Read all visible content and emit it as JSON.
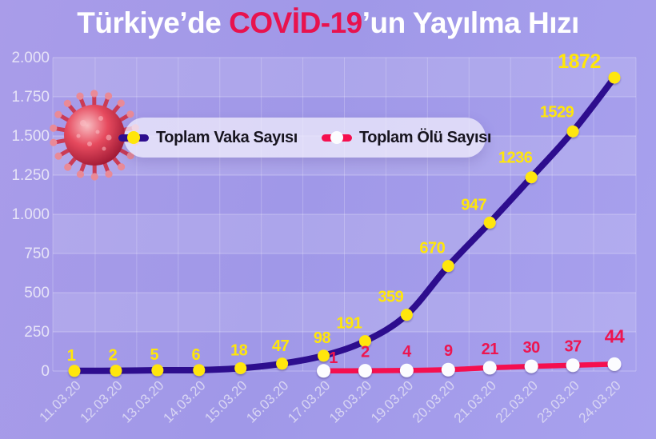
{
  "title": {
    "prefix": "Türkiye’de ",
    "highlight": "COVİD-19",
    "suffix": "’un Yayılma Hızı"
  },
  "colors": {
    "background": "#a29ae9",
    "title_text": "#ffffff",
    "title_highlight": "#e8124e",
    "band_light": "rgba(255,255,255,0.13)",
    "gridline": "rgba(255,255,255,0.30)",
    "cases_line": "#2d0d8e",
    "cases_marker": "#ffe60a",
    "cases_label": "#ffe60a",
    "deaths_line": "#f50f4f",
    "deaths_marker": "#fcfcff",
    "deaths_label": "#ed1550",
    "axis_label": "#d8d5f3",
    "legend_text": "#17141f"
  },
  "legend": {
    "icons": [
      "line-with-dot-icon",
      "line-with-dot-icon"
    ]
  },
  "decoration": {
    "virus_image": "coronavirus-3d-render"
  },
  "chart_data": {
    "type": "line",
    "title": "Türkiye’de COVİD-19’un Yayılma Hızı",
    "xlabel": "",
    "ylabel": "",
    "ylim": [
      0,
      2000
    ],
    "grid": true,
    "legend_position": "top-left-inside",
    "y_ticks": [
      "2.000",
      "1.750",
      "1.500",
      "1.250",
      "1.000",
      "750",
      "500",
      "250",
      "0"
    ],
    "y_tick_values": [
      2000,
      1750,
      1500,
      1250,
      1000,
      750,
      500,
      250,
      0
    ],
    "categories": [
      "11.03.20",
      "12.03.20",
      "13.03.20",
      "14.03.20",
      "15.03.20",
      "16.03.20",
      "17.03.20",
      "18.03.20",
      "19.03.20",
      "20.03.20",
      "21.03.20",
      "22.03.20",
      "23.03.20",
      "24.03.20"
    ],
    "series": [
      {
        "name": "Toplam Vaka Sayısı",
        "color": "#2d0d8e",
        "marker_color": "#ffe60a",
        "label_color": "#ffe60a",
        "values": [
          1,
          2,
          5,
          6,
          18,
          47,
          98,
          191,
          359,
          670,
          947,
          1236,
          1529,
          1872
        ]
      },
      {
        "name": "Toplam Ölü Sayısı",
        "color": "#f50f4f",
        "marker_color": "#fcfcff",
        "label_color": "#ed1550",
        "values": [
          null,
          null,
          null,
          null,
          null,
          null,
          1,
          2,
          4,
          9,
          21,
          30,
          37,
          44
        ]
      }
    ]
  }
}
